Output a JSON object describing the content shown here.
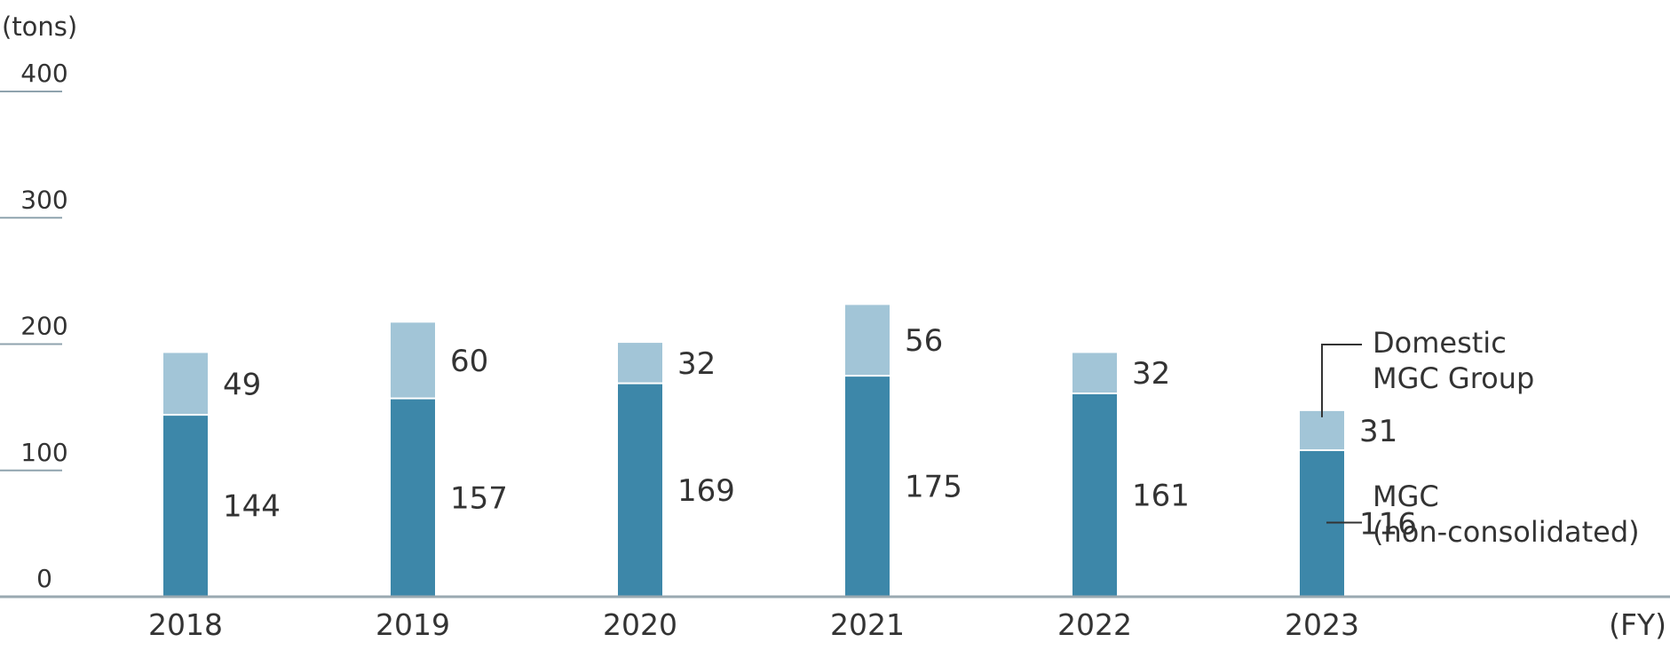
{
  "chart_data": {
    "type": "bar",
    "stacked": true,
    "y_unit_label": "(tons)",
    "x_unit_label": "(FY)",
    "categories": [
      "2018",
      "2019",
      "2020",
      "2021",
      "2022",
      "2023"
    ],
    "series": [
      {
        "name": "MGC\n(non-consolidated)",
        "values": [
          144,
          157,
          169,
          175,
          161,
          116
        ],
        "color": "#3d87a9"
      },
      {
        "name": "Domestic\nMGC Group",
        "values": [
          49,
          60,
          32,
          56,
          32,
          31
        ],
        "color": "#a2c5d7"
      }
    ],
    "ylim": [
      0,
      400
    ],
    "yticks": [
      0,
      100,
      200,
      300,
      400
    ],
    "grid": false,
    "legend_placement": "right of last bar (annotation callouts)"
  }
}
